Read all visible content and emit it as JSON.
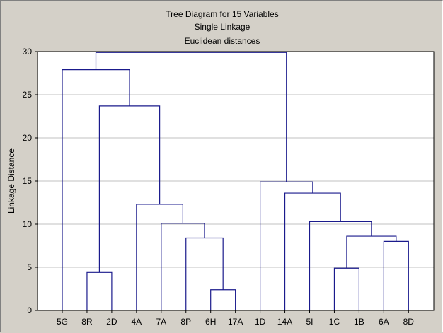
{
  "chart_data": {
    "type": "dendrogram",
    "title": [
      "Tree Diagram for 15 Variables",
      "Single Linkage",
      "Euclidean distances"
    ],
    "ylabel": "Linkage Distance",
    "xlabel": "",
    "ylim": [
      0,
      30
    ],
    "yticks": [
      "0",
      "5",
      "10",
      "15",
      "20",
      "25",
      "30"
    ],
    "grid": true,
    "leaves": [
      "5G",
      "8R",
      "2D",
      "4A",
      "7A",
      "8P",
      "6H",
      "17A",
      "1D",
      "14A",
      "5I",
      "1C",
      "1B",
      "6A",
      "8D"
    ],
    "merges": [
      {
        "id": "m1",
        "left": "8R",
        "right": "2D",
        "height": 4.4
      },
      {
        "id": "m2",
        "left": "6H",
        "right": "17A",
        "height": 2.4
      },
      {
        "id": "m3",
        "left": "8P",
        "right": "m2",
        "height": 8.4
      },
      {
        "id": "m4",
        "left": "7A",
        "right": "m3",
        "height": 10.1
      },
      {
        "id": "m5",
        "left": "4A",
        "right": "m4",
        "height": 12.3
      },
      {
        "id": "m6",
        "left": "m1",
        "right": "m5",
        "height": 23.7
      },
      {
        "id": "m7",
        "left": "m6",
        "right": "5G",
        "height": 27.9
      },
      {
        "id": "m8",
        "left": "1C",
        "right": "1B",
        "height": 4.9
      },
      {
        "id": "m9",
        "left": "6A",
        "right": "8D",
        "height": 8.0
      },
      {
        "id": "m10",
        "left": "m8",
        "right": "m9",
        "height": 8.6
      },
      {
        "id": "m11",
        "left": "5I",
        "right": "m10",
        "height": 10.3
      },
      {
        "id": "m12",
        "left": "14A",
        "right": "m11",
        "height": 13.6
      },
      {
        "id": "m13",
        "left": "1D",
        "right": "m12",
        "height": 14.9
      },
      {
        "id": "m14",
        "left": "m7",
        "right": "m13",
        "height": 29.9
      }
    ],
    "colors": {
      "link": "#1a1a8c",
      "grid": "#c0c0c0",
      "plot_bg": "#ffffff",
      "background": "#d4d0c8"
    }
  }
}
